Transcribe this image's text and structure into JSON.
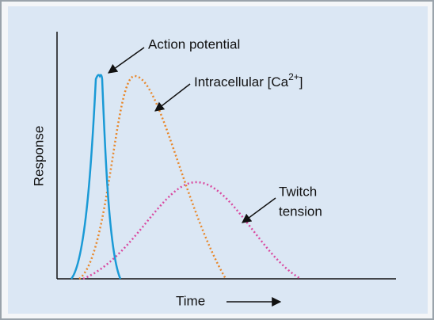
{
  "y_axis_label": "Response",
  "x_axis_label": "Time",
  "annotations": {
    "action_potential": "Action potential",
    "calcium": {
      "text": "Intracellular [Ca",
      "superscript": "2+",
      "closing": "]"
    },
    "twitch": [
      "Twitch",
      "tension"
    ]
  }
}
